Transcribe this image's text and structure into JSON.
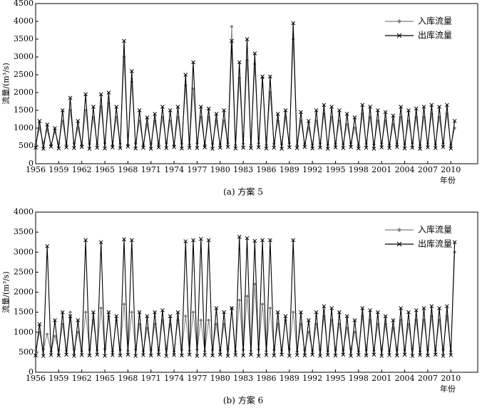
{
  "chart_data": [
    {
      "type": "line",
      "caption": "(a) 方案 5",
      "x_label": "年份",
      "y_label": "流量/(m³/s)",
      "legend": "upper right",
      "xlim": [
        1956,
        2013.5
      ],
      "ylim": [
        0,
        4500
      ],
      "xticks": [
        1956,
        1959,
        1962,
        1965,
        1968,
        1971,
        1974,
        1977,
        1980,
        1983,
        1986,
        1989,
        1992,
        1995,
        1998,
        2001,
        2004,
        2007,
        2010
      ],
      "yticks": [
        0,
        500,
        1000,
        1500,
        2000,
        2500,
        3000,
        3500,
        4000,
        4500
      ],
      "x": [
        1956,
        1956.5,
        1957,
        1957.5,
        1958,
        1958.5,
        1959,
        1959.5,
        1960,
        1960.5,
        1961,
        1961.5,
        1962,
        1962.5,
        1963,
        1963.5,
        1964,
        1964.5,
        1965,
        1965.5,
        1966,
        1966.5,
        1967,
        1967.5,
        1968,
        1968.5,
        1969,
        1969.5,
        1970,
        1970.5,
        1971,
        1971.5,
        1972,
        1972.5,
        1973,
        1973.5,
        1974,
        1974.5,
        1975,
        1975.5,
        1976,
        1976.5,
        1977,
        1977.5,
        1978,
        1978.5,
        1979,
        1979.5,
        1980,
        1980.5,
        1981,
        1981.5,
        1982,
        1982.5,
        1983,
        1983.5,
        1984,
        1984.5,
        1985,
        1985.5,
        1986,
        1986.5,
        1987,
        1987.5,
        1988,
        1988.5,
        1989,
        1989.5,
        1990,
        1990.5,
        1991,
        1991.5,
        1992,
        1992.5,
        1993,
        1993.5,
        1994,
        1994.5,
        1995,
        1995.5,
        1996,
        1996.5,
        1997,
        1997.5,
        1998,
        1998.5,
        1999,
        1999.5,
        2000,
        2000.5,
        2001,
        2001.5,
        2002,
        2002.5,
        2003,
        2003.5,
        2004,
        2004.5,
        2005,
        2005.5,
        2006,
        2006.5,
        2007,
        2007.5,
        2008,
        2008.5,
        2009,
        2009.5,
        2010,
        2010.5
      ],
      "series": [
        {
          "name": "入库流量",
          "color": "#808080",
          "marker": "diamond",
          "values": [
            550,
            1000,
            580,
            950,
            520,
            900,
            560,
            1200,
            540,
            1500,
            570,
            1000,
            530,
            1500,
            560,
            1300,
            550,
            1600,
            580,
            1700,
            520,
            1300,
            560,
            3000,
            540,
            2300,
            570,
            1200,
            530,
            1100,
            560,
            1200,
            550,
            1300,
            580,
            1200,
            520,
            1300,
            560,
            2200,
            540,
            2100,
            570,
            1300,
            530,
            1300,
            560,
            1200,
            550,
            1200,
            580,
            3850,
            520,
            2400,
            560,
            2900,
            540,
            2800,
            570,
            2400,
            530,
            2000,
            560,
            1200,
            550,
            1300,
            580,
            3500,
            520,
            1200,
            560,
            1000,
            540,
            1200,
            570,
            1400,
            530,
            1300,
            560,
            1200,
            550,
            1100,
            580,
            1000,
            520,
            1400,
            560,
            1300,
            540,
            1200,
            570,
            1200,
            530,
            1100,
            560,
            1300,
            550,
            1200,
            580,
            1300,
            520,
            1300,
            560,
            1400,
            540,
            1300,
            570,
            1400,
            530,
            1000
          ]
        },
        {
          "name": "出库流量",
          "color": "#000000",
          "marker": "x",
          "values": [
            450,
            1200,
            420,
            1100,
            480,
            1000,
            430,
            1500,
            460,
            1850,
            440,
            1200,
            470,
            1950,
            420,
            1600,
            450,
            1950,
            430,
            2000,
            460,
            1600,
            440,
            3450,
            480,
            2600,
            430,
            1500,
            450,
            1300,
            420,
            1400,
            460,
            1600,
            440,
            1500,
            470,
            1600,
            430,
            2500,
            450,
            2850,
            440,
            1600,
            460,
            1550,
            420,
            1400,
            450,
            1500,
            470,
            3450,
            430,
            2850,
            450,
            3500,
            440,
            3100,
            460,
            2450,
            430,
            2450,
            450,
            1400,
            420,
            1500,
            460,
            3950,
            440,
            1450,
            470,
            1200,
            430,
            1500,
            450,
            1650,
            420,
            1600,
            460,
            1500,
            440,
            1400,
            470,
            1300,
            430,
            1650,
            450,
            1600,
            420,
            1500,
            460,
            1450,
            440,
            1350,
            470,
            1600,
            430,
            1500,
            450,
            1550,
            420,
            1600,
            460,
            1650,
            440,
            1600,
            470,
            1650,
            430,
            1200
          ]
        }
      ]
    },
    {
      "type": "line",
      "caption": "(b) 方案 6",
      "x_label": "年份",
      "y_label": "流量/(m³/s)",
      "legend": "upper right",
      "xlim": [
        1956,
        2013.5
      ],
      "ylim": [
        0,
        4000
      ],
      "xticks": [
        1956,
        1959,
        1962,
        1965,
        1968,
        1971,
        1974,
        1977,
        1980,
        1983,
        1986,
        1989,
        1992,
        1995,
        1998,
        2001,
        2004,
        2007,
        2010
      ],
      "yticks": [
        0,
        500,
        1000,
        1500,
        2000,
        2500,
        3000,
        3500,
        4000
      ],
      "x": [
        1956,
        1956.5,
        1957,
        1957.5,
        1958,
        1958.5,
        1959,
        1959.5,
        1960,
        1960.5,
        1961,
        1961.5,
        1962,
        1962.5,
        1963,
        1963.5,
        1964,
        1964.5,
        1965,
        1965.5,
        1966,
        1966.5,
        1967,
        1967.5,
        1968,
        1968.5,
        1969,
        1969.5,
        1970,
        1970.5,
        1971,
        1971.5,
        1972,
        1972.5,
        1973,
        1973.5,
        1974,
        1974.5,
        1975,
        1975.5,
        1976,
        1976.5,
        1977,
        1977.5,
        1978,
        1978.5,
        1979,
        1979.5,
        1980,
        1980.5,
        1981,
        1981.5,
        1982,
        1982.5,
        1983,
        1983.5,
        1984,
        1984.5,
        1985,
        1985.5,
        1986,
        1986.5,
        1987,
        1987.5,
        1988,
        1988.5,
        1989,
        1989.5,
        1990,
        1990.5,
        1991,
        1991.5,
        1992,
        1992.5,
        1993,
        1993.5,
        1994,
        1994.5,
        1995,
        1995.5,
        1996,
        1996.5,
        1997,
        1997.5,
        1998,
        1998.5,
        1999,
        1999.5,
        2000,
        2000.5,
        2001,
        2001.5,
        2002,
        2002.5,
        2003,
        2003.5,
        2004,
        2004.5,
        2005,
        2005.5,
        2006,
        2006.5,
        2007,
        2007.5,
        2008,
        2008.5,
        2009,
        2009.5,
        2010,
        2010.5
      ],
      "series": [
        {
          "name": "入库流量",
          "color": "#808080",
          "marker": "diamond",
          "values": [
            550,
            1000,
            580,
            950,
            520,
            900,
            560,
            1200,
            540,
            1500,
            570,
            1000,
            530,
            1500,
            560,
            1300,
            550,
            1600,
            580,
            1400,
            520,
            1300,
            560,
            1700,
            540,
            1500,
            570,
            1200,
            530,
            1100,
            560,
            1200,
            550,
            1300,
            580,
            1200,
            520,
            1300,
            560,
            1400,
            540,
            1500,
            570,
            1300,
            530,
            1300,
            560,
            1200,
            550,
            1200,
            580,
            1600,
            520,
            1800,
            560,
            1900,
            540,
            2200,
            570,
            1700,
            530,
            1600,
            560,
            1200,
            550,
            1300,
            580,
            1500,
            520,
            1200,
            560,
            1000,
            540,
            1200,
            570,
            1400,
            530,
            1300,
            560,
            1200,
            550,
            1100,
            580,
            1000,
            520,
            1400,
            560,
            1300,
            540,
            1200,
            570,
            1200,
            530,
            1100,
            560,
            1300,
            550,
            1200,
            580,
            1300,
            520,
            1300,
            560,
            1400,
            540,
            1300,
            570,
            1400,
            530,
            3000
          ]
        },
        {
          "name": "出库流量",
          "color": "#000000",
          "marker": "x",
          "values": [
            420,
            1200,
            410,
            3150,
            430,
            1300,
            420,
            1500,
            440,
            1400,
            410,
            1300,
            430,
            3300,
            420,
            1500,
            440,
            3250,
            410,
            1500,
            430,
            1400,
            420,
            3320,
            440,
            3300,
            410,
            1500,
            430,
            1400,
            420,
            1500,
            440,
            1550,
            410,
            1400,
            430,
            1500,
            420,
            3270,
            440,
            3300,
            410,
            3330,
            430,
            3300,
            420,
            1600,
            440,
            1500,
            410,
            1600,
            430,
            3380,
            420,
            3350,
            440,
            3280,
            410,
            3300,
            430,
            3300,
            420,
            1500,
            440,
            1400,
            410,
            3300,
            430,
            1500,
            420,
            1300,
            440,
            1500,
            410,
            1650,
            430,
            1600,
            420,
            1500,
            440,
            1400,
            410,
            1300,
            430,
            1600,
            420,
            1550,
            440,
            1500,
            410,
            1400,
            430,
            1300,
            420,
            1600,
            440,
            1500,
            410,
            1550,
            430,
            1600,
            420,
            1650,
            440,
            1600,
            410,
            1650,
            430,
            3250
          ]
        }
      ]
    }
  ]
}
